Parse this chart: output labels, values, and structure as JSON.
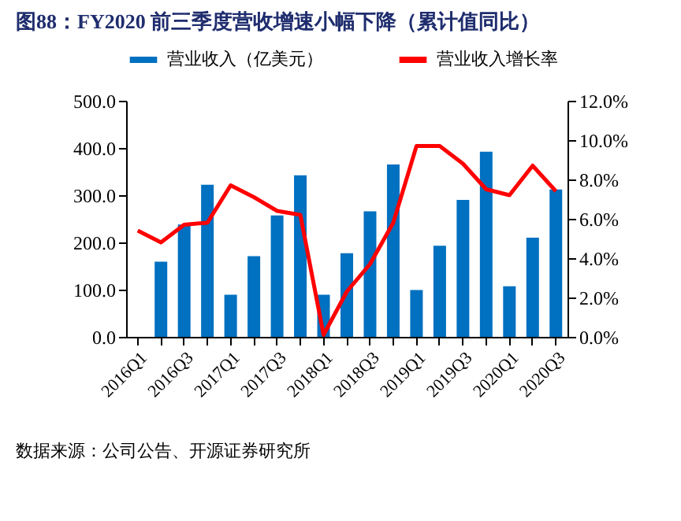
{
  "chart_data": {
    "type": "bar",
    "title": "图88：FY2020 前三季度营收增速小幅下降（累计值同比）",
    "categories": [
      "2016Q1",
      null,
      "2016Q3",
      null,
      "2017Q1",
      null,
      "2017Q3",
      null,
      "2018Q1",
      null,
      "2018Q3",
      null,
      "2019Q1",
      null,
      "2019Q3",
      null,
      "2020Q1",
      null,
      "2020Q3"
    ],
    "series": [
      {
        "name": "营业收入（亿美元）",
        "color": "#0070c0",
        "values": [
          null,
          159,
          238,
          322,
          89,
          171,
          257,
          342,
          89,
          177,
          266,
          365,
          99,
          193,
          290,
          392,
          107,
          210,
          312
        ]
      },
      {
        "name": "营业收入增长率",
        "type": "line",
        "axis": "y2",
        "color": "#ff0000",
        "values": [
          5.4,
          4.8,
          5.7,
          5.8,
          7.7,
          7.1,
          6.4,
          6.2,
          0.1,
          2.3,
          3.7,
          5.8,
          9.7,
          9.7,
          8.8,
          7.5,
          7.2,
          8.7,
          7.4
        ]
      }
    ],
    "ylim": [
      0,
      500
    ],
    "yticks": [
      {
        "value": 0,
        "label": "0.0"
      },
      {
        "value": 100,
        "label": "100.0"
      },
      {
        "value": 200,
        "label": "200.0"
      },
      {
        "value": 300,
        "label": "300.0"
      },
      {
        "value": 400,
        "label": "400.0"
      },
      {
        "value": 500,
        "label": "500.0"
      }
    ],
    "y2lim": [
      0,
      12
    ],
    "y2ticks": [
      {
        "value": 0,
        "label": "0.0%"
      },
      {
        "value": 2,
        "label": "2.0%"
      },
      {
        "value": 4,
        "label": "4.0%"
      },
      {
        "value": 6,
        "label": "6.0%"
      },
      {
        "value": 8,
        "label": "8.0%"
      },
      {
        "value": 10,
        "label": "10.0%"
      },
      {
        "value": 12,
        "label": "12.0%"
      }
    ],
    "legend": "top",
    "grid": false,
    "annotations": [
      "数据来源：公司公告、开源证券研究所"
    ]
  }
}
